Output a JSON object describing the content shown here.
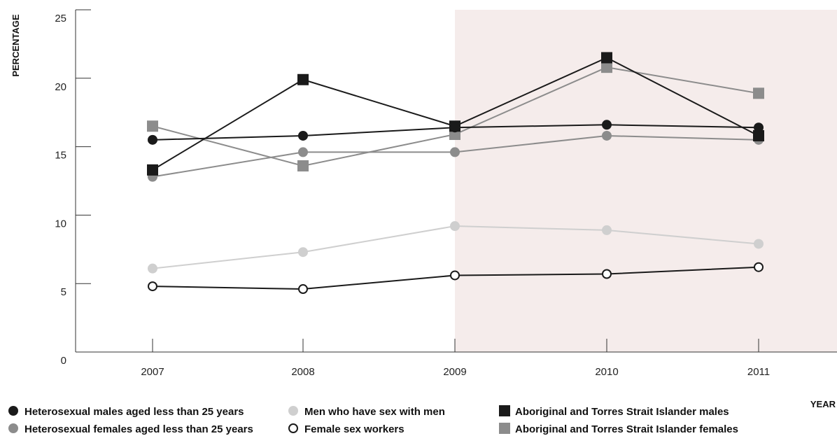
{
  "chart_data": {
    "type": "line",
    "title": "",
    "ylabel": "PERCENTAGE",
    "xlabel": "YEAR",
    "categories": [
      "2007",
      "2008",
      "2009",
      "2010",
      "2011"
    ],
    "ylim": [
      0,
      25
    ],
    "yticks": [
      0,
      5,
      10,
      15,
      20,
      25
    ],
    "grid": false,
    "highlight": {
      "from": "2009",
      "to": "end",
      "color": "#f5eceb"
    },
    "series": [
      {
        "name": "Heterosexual males aged less than 25 years",
        "values": [
          15.5,
          15.8,
          16.4,
          16.6,
          16.4
        ],
        "color": "#1a1a1a",
        "marker": "circle"
      },
      {
        "name": "Heterosexual females aged less than 25 years",
        "values": [
          12.8,
          14.6,
          14.6,
          15.8,
          15.5
        ],
        "color": "#8c8c8c",
        "marker": "circle"
      },
      {
        "name": "Men who have sex with men",
        "values": [
          6.1,
          7.3,
          9.2,
          8.9,
          7.9
        ],
        "color": "#cfcfcf",
        "marker": "circle"
      },
      {
        "name": "Female sex workers",
        "values": [
          4.8,
          4.6,
          5.6,
          5.7,
          6.2
        ],
        "color": "#1a1a1a",
        "marker": "open-circle"
      },
      {
        "name": "Aboriginal and Torres Strait Islander males",
        "values": [
          13.3,
          19.9,
          16.5,
          21.5,
          15.8
        ],
        "color": "#1a1a1a",
        "marker": "square"
      },
      {
        "name": "Aboriginal and Torres Strait Islander females",
        "values": [
          16.5,
          13.6,
          15.9,
          20.8,
          18.9
        ],
        "color": "#8c8c8c",
        "marker": "square"
      }
    ],
    "legend_position": "bottom"
  }
}
